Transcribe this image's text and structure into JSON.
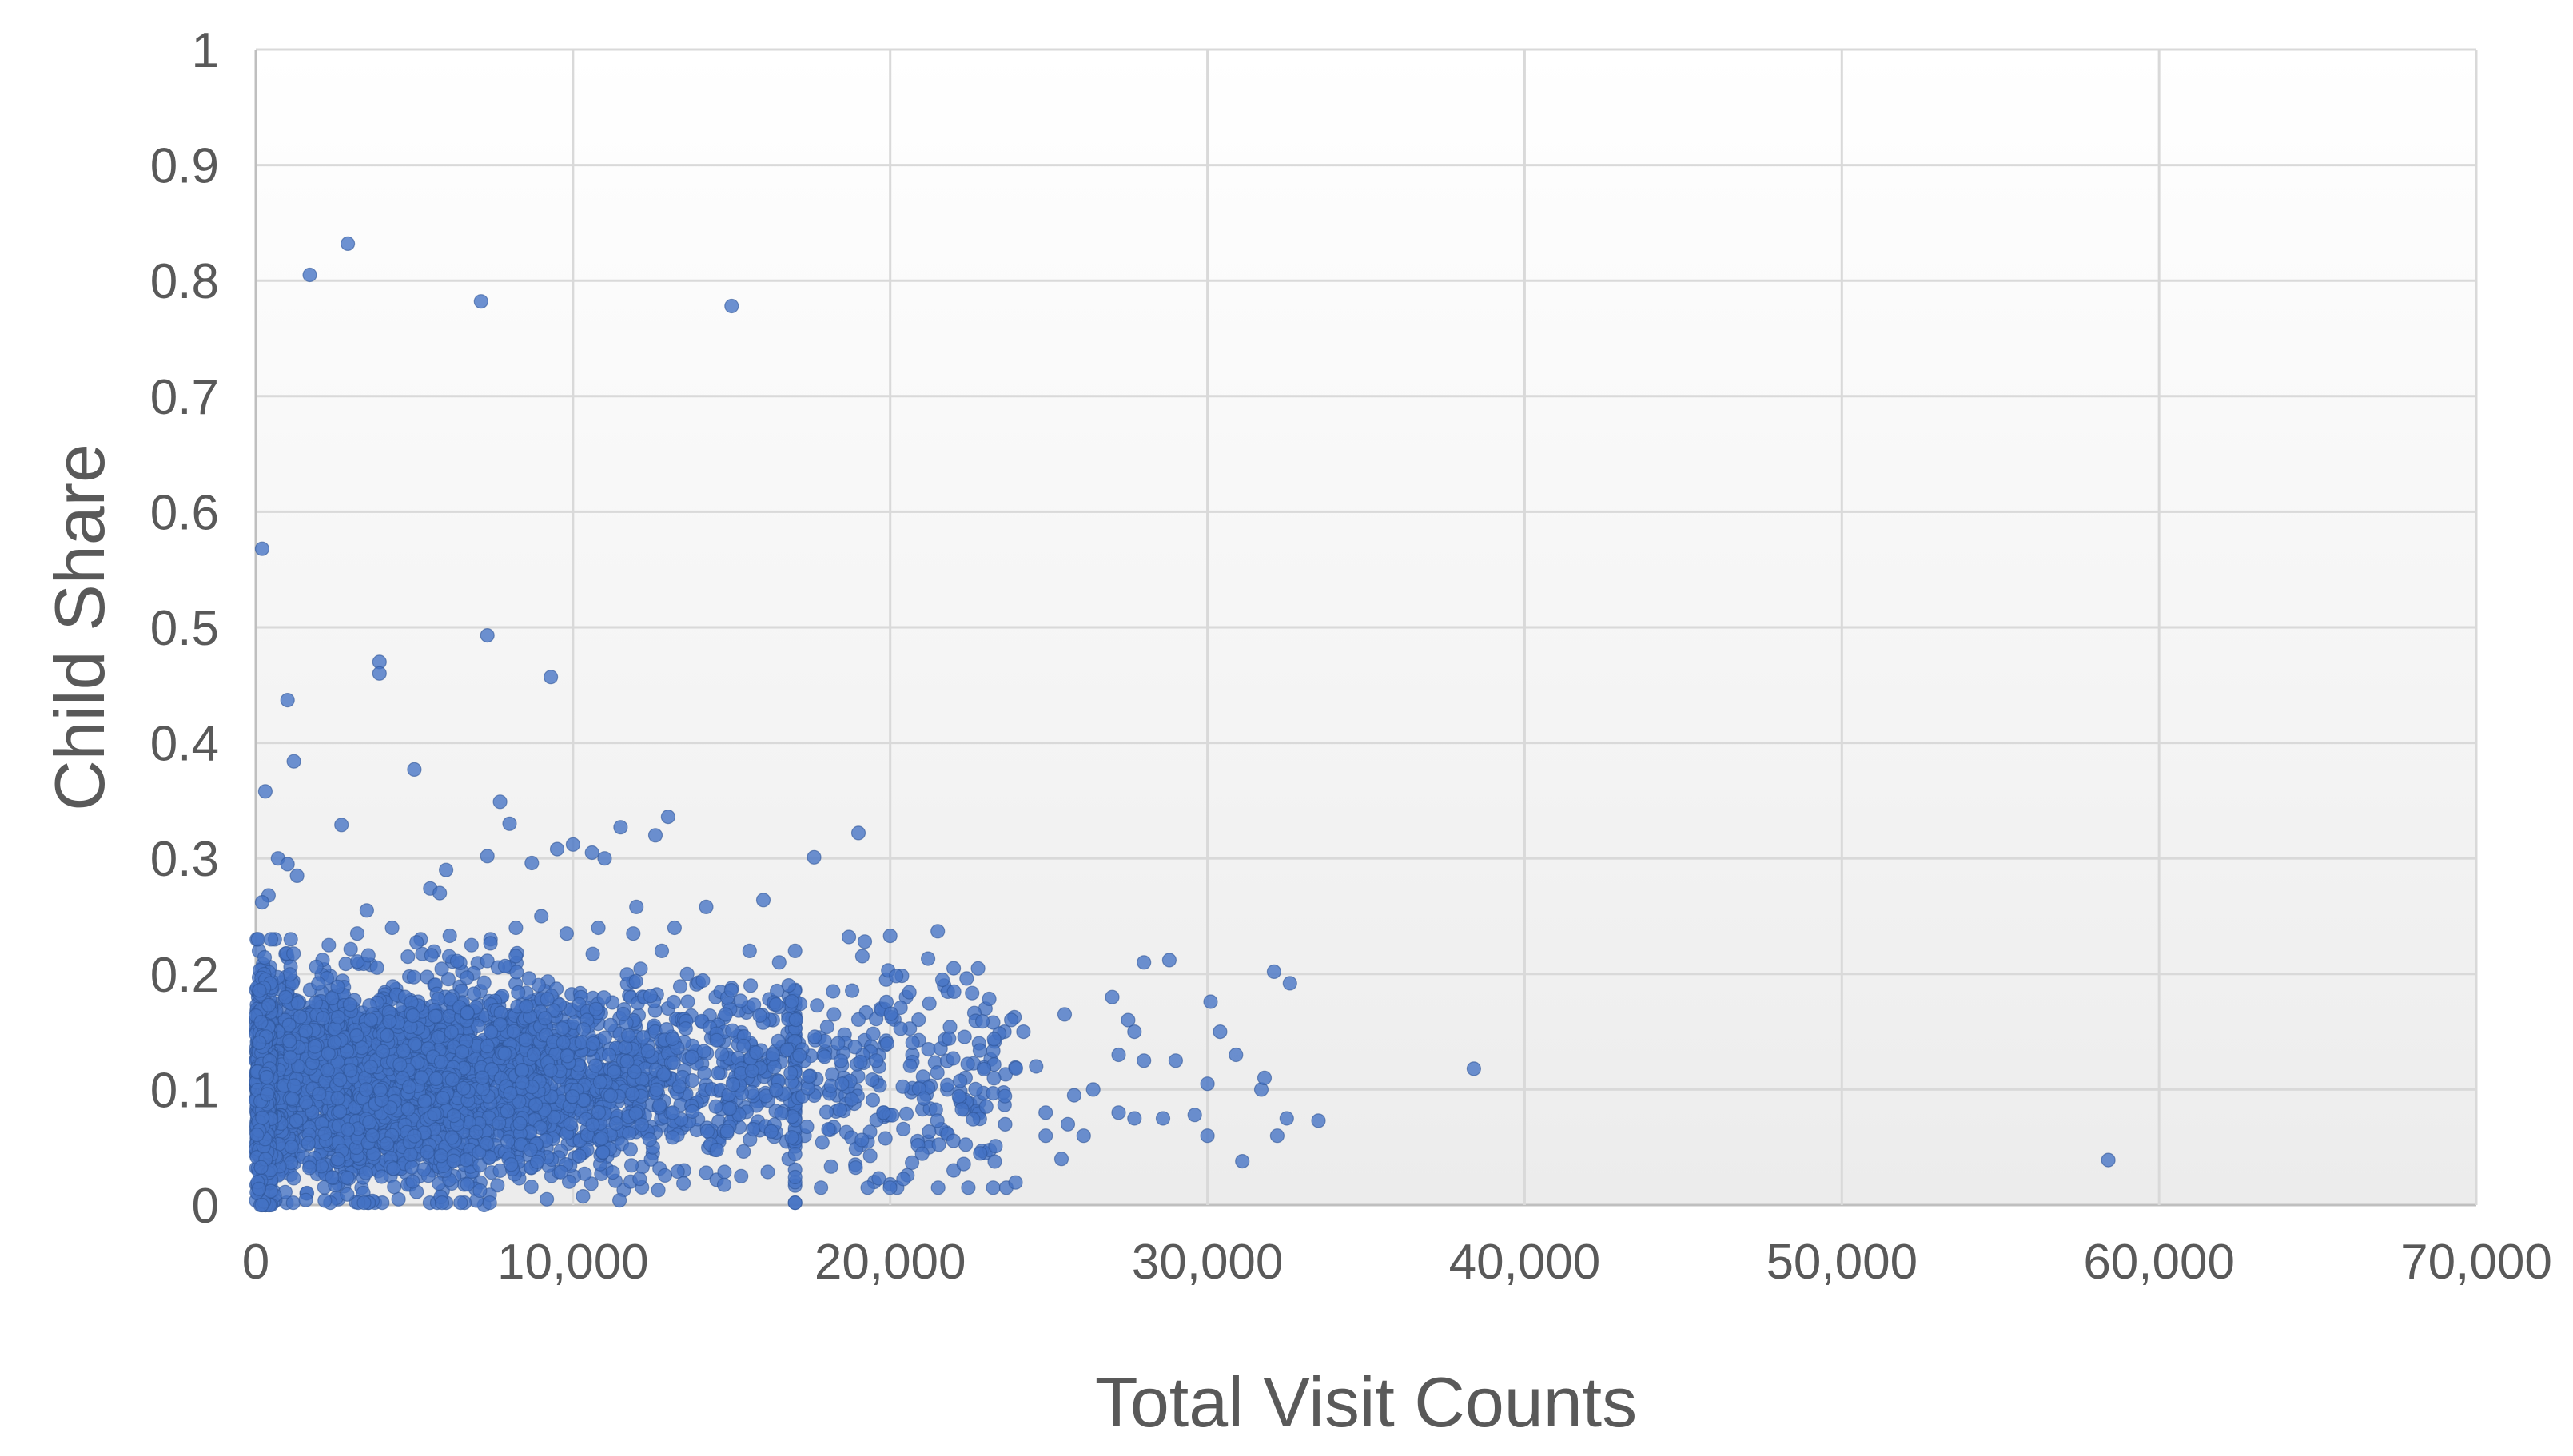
{
  "chart_data": {
    "type": "scatter",
    "title": "",
    "xlabel": "Total Visit Counts",
    "ylabel": "Child Share",
    "xlim": [
      0,
      70000
    ],
    "ylim": [
      0,
      1
    ],
    "x_ticks": [
      0,
      10000,
      20000,
      30000,
      40000,
      50000,
      60000,
      70000
    ],
    "x_tick_labels": [
      "0",
      "10,000",
      "20,000",
      "30,000",
      "40,000",
      "50,000",
      "60,000",
      "70,000"
    ],
    "y_ticks": [
      0,
      0.1,
      0.2,
      0.3,
      0.4,
      0.5,
      0.6,
      0.7,
      0.8,
      0.9,
      1
    ],
    "y_tick_labels": [
      "0",
      "0.1",
      "0.2",
      "0.3",
      "0.4",
      "0.5",
      "0.6",
      "0.7",
      "0.8",
      "0.9",
      "1"
    ],
    "grid": true,
    "legend": "none",
    "series": [
      {
        "color": "#4472c4",
        "points": [
          [
            1700,
            0.805
          ],
          [
            2900,
            0.832
          ],
          [
            7100,
            0.782
          ],
          [
            15000,
            0.778
          ],
          [
            200,
            0.568
          ],
          [
            7300,
            0.493
          ],
          [
            3900,
            0.47
          ],
          [
            3900,
            0.46
          ],
          [
            9300,
            0.457
          ],
          [
            1000,
            0.437
          ],
          [
            1200,
            0.384
          ],
          [
            5000,
            0.377
          ],
          [
            300,
            0.358
          ],
          [
            7700,
            0.349
          ],
          [
            13000,
            0.336
          ],
          [
            8000,
            0.33
          ],
          [
            2700,
            0.329
          ],
          [
            11500,
            0.327
          ],
          [
            19000,
            0.322
          ],
          [
            12600,
            0.32
          ],
          [
            10000,
            0.312
          ],
          [
            9500,
            0.308
          ],
          [
            10600,
            0.305
          ],
          [
            7300,
            0.302
          ],
          [
            17600,
            0.301
          ],
          [
            11000,
            0.3
          ],
          [
            700,
            0.3
          ],
          [
            8700,
            0.296
          ],
          [
            1000,
            0.295
          ],
          [
            6000,
            0.29
          ],
          [
            1300,
            0.285
          ],
          [
            5500,
            0.274
          ],
          [
            5800,
            0.27
          ],
          [
            16000,
            0.264
          ],
          [
            400,
            0.268
          ],
          [
            200,
            0.262
          ],
          [
            3500,
            0.255
          ],
          [
            12000,
            0.258
          ],
          [
            14200,
            0.258
          ],
          [
            21500,
            0.237
          ],
          [
            18700,
            0.232
          ],
          [
            20000,
            0.233
          ],
          [
            19200,
            0.228
          ],
          [
            22000,
            0.205
          ],
          [
            23000,
            0.17
          ],
          [
            24200,
            0.15
          ],
          [
            21700,
            0.19
          ],
          [
            20500,
            0.18
          ],
          [
            19700,
            0.17
          ],
          [
            18200,
            0.185
          ],
          [
            17000,
            0.22
          ],
          [
            16500,
            0.21
          ],
          [
            28800,
            0.212
          ],
          [
            28000,
            0.21
          ],
          [
            32100,
            0.202
          ],
          [
            32600,
            0.192
          ],
          [
            30100,
            0.176
          ],
          [
            27000,
            0.18
          ],
          [
            27500,
            0.16
          ],
          [
            27700,
            0.15
          ],
          [
            25500,
            0.165
          ],
          [
            30400,
            0.15
          ],
          [
            29000,
            0.125
          ],
          [
            27200,
            0.13
          ],
          [
            28000,
            0.125
          ],
          [
            30900,
            0.13
          ],
          [
            31700,
            0.1
          ],
          [
            31800,
            0.11
          ],
          [
            30000,
            0.105
          ],
          [
            25800,
            0.095
          ],
          [
            26400,
            0.1
          ],
          [
            27200,
            0.08
          ],
          [
            27700,
            0.075
          ],
          [
            28600,
            0.075
          ],
          [
            30000,
            0.06
          ],
          [
            32200,
            0.06
          ],
          [
            32500,
            0.075
          ],
          [
            33500,
            0.073
          ],
          [
            31100,
            0.038
          ],
          [
            29600,
            0.078
          ],
          [
            24900,
            0.06
          ],
          [
            25600,
            0.07
          ],
          [
            23000,
            0.045
          ],
          [
            22000,
            0.03
          ],
          [
            20000,
            0.018
          ],
          [
            19500,
            0.02
          ],
          [
            19800,
            0.08
          ],
          [
            21200,
            0.055
          ],
          [
            21800,
            0.1
          ],
          [
            20700,
            0.13
          ],
          [
            22800,
            0.14
          ],
          [
            23600,
            0.15
          ],
          [
            24600,
            0.12
          ],
          [
            24900,
            0.08
          ],
          [
            25400,
            0.04
          ],
          [
            26100,
            0.06
          ],
          [
            38400,
            0.118
          ],
          [
            58400,
            0.039
          ],
          [
            7200,
            0.0
          ],
          [
            300,
            0.0
          ],
          [
            1600,
            0.01
          ],
          [
            2600,
            0.005
          ],
          [
            4500,
            0.005
          ],
          [
            11600,
            0.013
          ],
          [
            13500,
            0.03
          ],
          [
            14200,
            0.028
          ],
          [
            15300,
            0.025
          ],
          [
            16800,
            0.04
          ],
          [
            17300,
            0.06
          ],
          [
            18100,
            0.065
          ],
          [
            18900,
            0.035
          ],
          [
            13900,
            0.065
          ],
          [
            15900,
            0.09
          ],
          [
            16300,
            0.16
          ],
          [
            15600,
            0.19
          ],
          [
            14500,
            0.18
          ],
          [
            13600,
            0.2
          ],
          [
            12800,
            0.22
          ],
          [
            13200,
            0.24
          ],
          [
            11900,
            0.235
          ],
          [
            10800,
            0.24
          ],
          [
            9800,
            0.235
          ],
          [
            9000,
            0.25
          ],
          [
            8200,
            0.24
          ],
          [
            7400,
            0.23
          ],
          [
            6800,
            0.225
          ],
          [
            5200,
            0.23
          ],
          [
            4300,
            0.24
          ],
          [
            3200,
            0.235
          ],
          [
            2300,
            0.225
          ],
          [
            1100,
            0.23
          ],
          [
            600,
            0.23
          ],
          [
            100,
            0.22
          ]
        ]
      }
    ]
  }
}
